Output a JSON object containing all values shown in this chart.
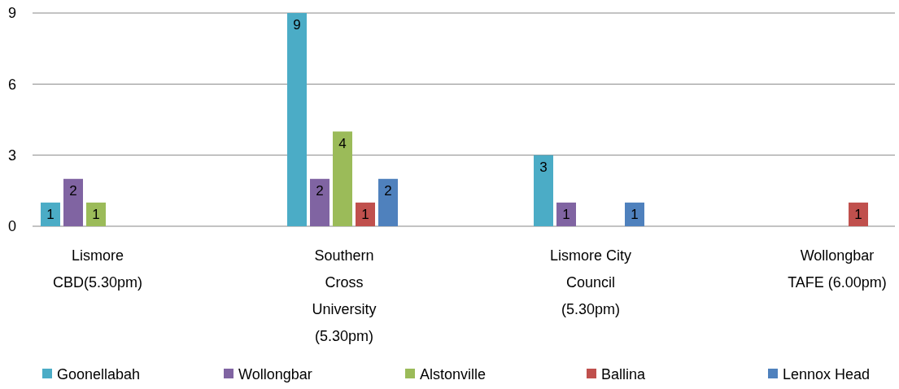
{
  "chart_data": {
    "type": "bar",
    "categories": [
      "Lismore CBD(5.30pm)",
      "Southern Cross University (5.30pm)",
      "Lismore City Council (5.30pm)",
      "Wollongbar TAFE (6.00pm)"
    ],
    "series": [
      {
        "name": "Goonellabah",
        "color": "#4bacc6",
        "values": [
          1,
          9,
          3,
          null
        ]
      },
      {
        "name": "Wollongbar",
        "color": "#8064a2",
        "values": [
          2,
          2,
          1,
          null
        ]
      },
      {
        "name": "Alstonville",
        "color": "#9bbb59",
        "values": [
          1,
          4,
          null,
          null
        ]
      },
      {
        "name": "Ballina",
        "color": "#c0504d",
        "values": [
          null,
          1,
          null,
          1
        ]
      },
      {
        "name": "Lennox Head",
        "color": "#4f81bd",
        "values": [
          null,
          2,
          1,
          null
        ]
      }
    ],
    "ylim": [
      0,
      9
    ],
    "yticks": [
      0,
      3,
      6,
      9
    ],
    "grid": "y",
    "legend": "bottom",
    "data_labels": true
  }
}
